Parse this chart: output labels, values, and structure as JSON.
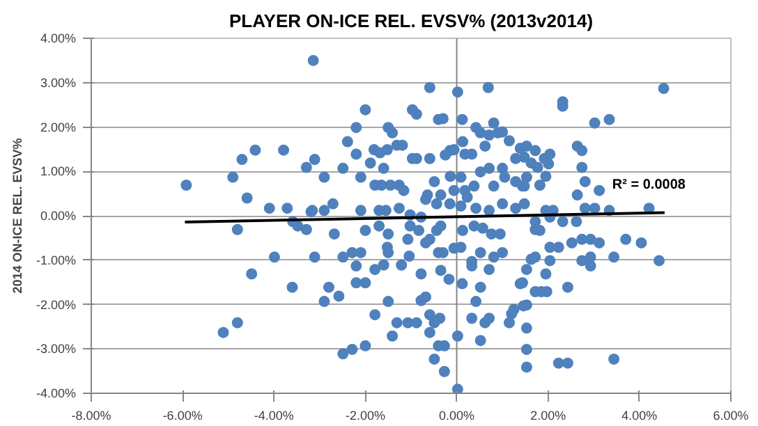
{
  "chart_data": {
    "type": "scatter",
    "title": "PLAYER ON-ICE REL. EVSV% (2013v2014)",
    "ylabel": "2014 ON-ICE REL. EVSV%",
    "xlim": [
      -8,
      6
    ],
    "ylim": [
      -4,
      4
    ],
    "xticks": [
      {
        "value": -8,
        "label": "-8.00%"
      },
      {
        "value": -6,
        "label": "-6.00%"
      },
      {
        "value": -4,
        "label": "-4.00%"
      },
      {
        "value": -2,
        "label": "-2.00%"
      },
      {
        "value": 0,
        "label": "0.00%"
      },
      {
        "value": 2,
        "label": "2.00%"
      },
      {
        "value": 4,
        "label": "4.00%"
      },
      {
        "value": 6,
        "label": "6.00%"
      }
    ],
    "yticks": [
      {
        "value": -4,
        "label": "-4.00%"
      },
      {
        "value": -3,
        "label": "-3.00%"
      },
      {
        "value": -2,
        "label": "-2.00%"
      },
      {
        "value": -1,
        "label": "-1.00%"
      },
      {
        "value": 0,
        "label": "0.00%"
      },
      {
        "value": 1,
        "label": "1.00%"
      },
      {
        "value": 2,
        "label": "2.00%"
      },
      {
        "value": 3,
        "label": "3.00%"
      },
      {
        "value": 4,
        "label": "4.00%"
      }
    ],
    "grid": "y",
    "marker": "circle",
    "ref_lines": [
      {
        "axis": "x",
        "value": 0,
        "color": "#868686"
      }
    ],
    "annotations": [
      "R² = 0.0008"
    ],
    "series": [
      {
        "color": "#4f81bd",
        "x": [
          -3.14,
          -4.7,
          -4.41,
          -3.79,
          -3.29,
          -4.9,
          -5.92,
          -4.59,
          -4.1,
          -3.71,
          -3.19,
          -3.11,
          -4.8,
          -3.59,
          -3.48,
          -3.29,
          -3.99,
          -3.11,
          -4.49,
          -3.6,
          -4.8,
          -5.11,
          -2.0,
          -2.2,
          -1.5,
          -1.41,
          -2.39,
          -0.97,
          -0.88,
          -0.59,
          -0.4,
          -0.3,
          0.02,
          0.12,
          0.69,
          0.81,
          0.42,
          0.52,
          0.71,
          0.9,
          1.0,
          1.15,
          1.39,
          0.62,
          0.13,
          -0.06,
          -0.15,
          0.18,
          0.33,
          -1.81,
          -1.68,
          -1.52,
          -1.31,
          -1.19,
          -2.2,
          -1.89,
          -1.6,
          -0.97,
          -0.88,
          -0.59,
          -0.25,
          -2.49,
          -2.9,
          -2.1,
          -0.49,
          -0.14,
          0.09,
          0.52,
          0.71,
          1.0,
          1.29,
          1.48,
          -1.79,
          -1.65,
          -1.45,
          -1.26,
          -1.16,
          -0.64,
          -0.35,
          -0.06,
          0.18,
          0.38,
          0.81,
          1.05,
          1.29,
          1.48,
          -2.71,
          -3.16,
          -2.9,
          -2.1,
          -1.7,
          -1.55,
          -1.26,
          -0.68,
          -0.44,
          -0.15,
          0.09,
          0.23,
          0.42,
          0.71,
          1.0,
          1.29,
          -1.02,
          -0.78,
          4.53,
          2.32,
          2.32,
          3.02,
          3.34,
          1.53,
          1.72,
          2.04,
          1.92,
          1.63,
          1.77,
          2.01,
          2.64,
          2.74,
          2.74,
          1.53,
          1.95,
          1.82,
          2.81,
          3.12,
          2.64,
          1.44,
          1.48,
          1.95,
          2.11,
          2.81,
          3.02,
          3.34,
          4.21,
          1.72,
          2.04,
          2.32,
          2.62,
          1.72,
          1.82,
          2.04,
          2.23,
          2.52,
          2.74,
          2.93,
          3.12,
          3.7,
          4.04,
          1.53,
          1.63,
          1.72,
          2.04,
          2.74,
          2.93,
          2.93,
          3.44,
          4.43,
          1.95,
          1.72,
          1.85,
          1.97,
          2.43,
          1.44,
          1.53,
          1.53,
          1.53,
          1.53,
          2.23,
          2.43,
          3.44,
          -2.68,
          -2.0,
          -1.7,
          -1.5,
          -1.52,
          -1.5,
          -2.49,
          -2.29,
          -2.1,
          -2.2,
          -1.79,
          -1.6,
          -1.21,
          -1.04,
          -1.07,
          -1.02,
          -0.83,
          -0.68,
          -0.59,
          -0.44,
          -0.35,
          -0.4,
          -0.3,
          -0.35,
          -0.78,
          -0.17,
          -0.06,
          0.09,
          0.13,
          0.38,
          0.57,
          0.76,
          0.95,
          1.0,
          0.81,
          0.52,
          0.33,
          0.33,
          0.71,
          0.12,
          0.52,
          1.39,
          -2.8,
          -2.58,
          -2.9,
          -2.2,
          -2.0,
          -1.5,
          -0.68,
          -0.78,
          -1.79,
          -1.41,
          -1.31,
          -1.07,
          -0.88,
          -0.59,
          -0.49,
          -0.37,
          -0.59,
          -0.27,
          -0.49,
          -0.4,
          -0.27,
          0.02,
          0.02,
          0.33,
          0.42,
          0.52,
          0.62,
          0.71,
          1.15,
          1.2,
          1.25,
          1.46,
          -2.0,
          -2.29,
          -2.49
        ],
        "values": [
          3.5,
          1.27,
          1.48,
          1.48,
          1.09,
          0.87,
          0.69,
          0.4,
          0.17,
          0.17,
          0.09,
          1.27,
          -0.31,
          -0.13,
          -0.23,
          -0.31,
          -0.93,
          -0.93,
          -1.31,
          -1.61,
          -2.41,
          -2.63,
          2.39,
          1.99,
          1.99,
          1.87,
          1.67,
          2.39,
          2.29,
          2.89,
          2.17,
          2.19,
          2.79,
          2.17,
          2.89,
          2.09,
          1.99,
          1.87,
          1.82,
          1.87,
          1.89,
          1.69,
          1.52,
          1.57,
          1.67,
          1.49,
          1.47,
          1.39,
          1.39,
          1.49,
          1.42,
          1.49,
          1.59,
          1.59,
          1.39,
          1.19,
          1.07,
          1.29,
          1.29,
          1.29,
          1.37,
          1.07,
          0.87,
          0.87,
          0.77,
          0.89,
          0.87,
          0.99,
          1.07,
          1.07,
          1.29,
          1.32,
          0.69,
          0.69,
          0.69,
          0.69,
          0.57,
          0.47,
          0.47,
          0.57,
          0.57,
          0.67,
          0.67,
          0.87,
          0.77,
          0.67,
          0.27,
          0.12,
          0.12,
          0.12,
          0.12,
          0.12,
          0.17,
          0.37,
          0.27,
          0.27,
          0.22,
          0.42,
          0.17,
          0.12,
          0.27,
          0.17,
          0.02,
          -0.03,
          2.87,
          2.57,
          2.47,
          2.09,
          2.17,
          1.57,
          1.47,
          1.39,
          1.29,
          1.19,
          1.09,
          1.17,
          1.57,
          1.47,
          1.09,
          0.87,
          0.89,
          0.69,
          0.77,
          0.57,
          0.47,
          0.67,
          0.27,
          0.12,
          0.12,
          0.17,
          0.17,
          0.12,
          0.17,
          -0.13,
          -0.03,
          -0.13,
          -0.13,
          -0.31,
          -0.33,
          -0.71,
          -0.71,
          -0.61,
          -0.53,
          -0.53,
          -0.61,
          -0.53,
          -0.61,
          -1.21,
          -0.98,
          -0.93,
          -1.01,
          -1.01,
          -0.93,
          -1.13,
          -0.93,
          -1.01,
          -1.31,
          -1.71,
          -1.71,
          -1.71,
          -1.61,
          -1.51,
          -2.01,
          -2.53,
          -3.01,
          -3.41,
          -3.32,
          -3.32,
          -3.23,
          -0.41,
          -0.33,
          -0.23,
          -0.41,
          -0.71,
          -0.83,
          -0.93,
          -0.83,
          -0.83,
          -1.13,
          -1.21,
          -1.11,
          -1.11,
          -0.91,
          -0.53,
          -0.23,
          -0.33,
          -0.61,
          -0.53,
          -0.33,
          -0.23,
          -0.83,
          -0.83,
          -1.23,
          -1.31,
          -1.43,
          -0.73,
          -0.71,
          -0.33,
          -0.23,
          -0.28,
          -0.41,
          -0.41,
          -0.83,
          -0.93,
          -0.83,
          -1.03,
          -1.13,
          -1.21,
          -1.53,
          -1.61,
          -1.53,
          -1.61,
          -1.81,
          -1.93,
          -1.51,
          -1.51,
          -1.93,
          -1.83,
          -1.91,
          -2.23,
          -2.71,
          -2.41,
          -2.41,
          -2.41,
          -2.23,
          -2.41,
          -2.31,
          -2.63,
          -2.93,
          -3.23,
          -2.93,
          -3.51,
          -2.71,
          -3.91,
          -2.31,
          -1.93,
          -2.81,
          -2.41,
          -2.31,
          -2.41,
          -2.21,
          -2.11,
          -2.03,
          -2.93,
          -3.01,
          -3.11
        ]
      },
      {
        "type": "line",
        "marker": "none",
        "color": "#000000",
        "x": [
          -5.95,
          4.55
        ],
        "values": [
          -0.14,
          0.07
        ]
      }
    ]
  }
}
